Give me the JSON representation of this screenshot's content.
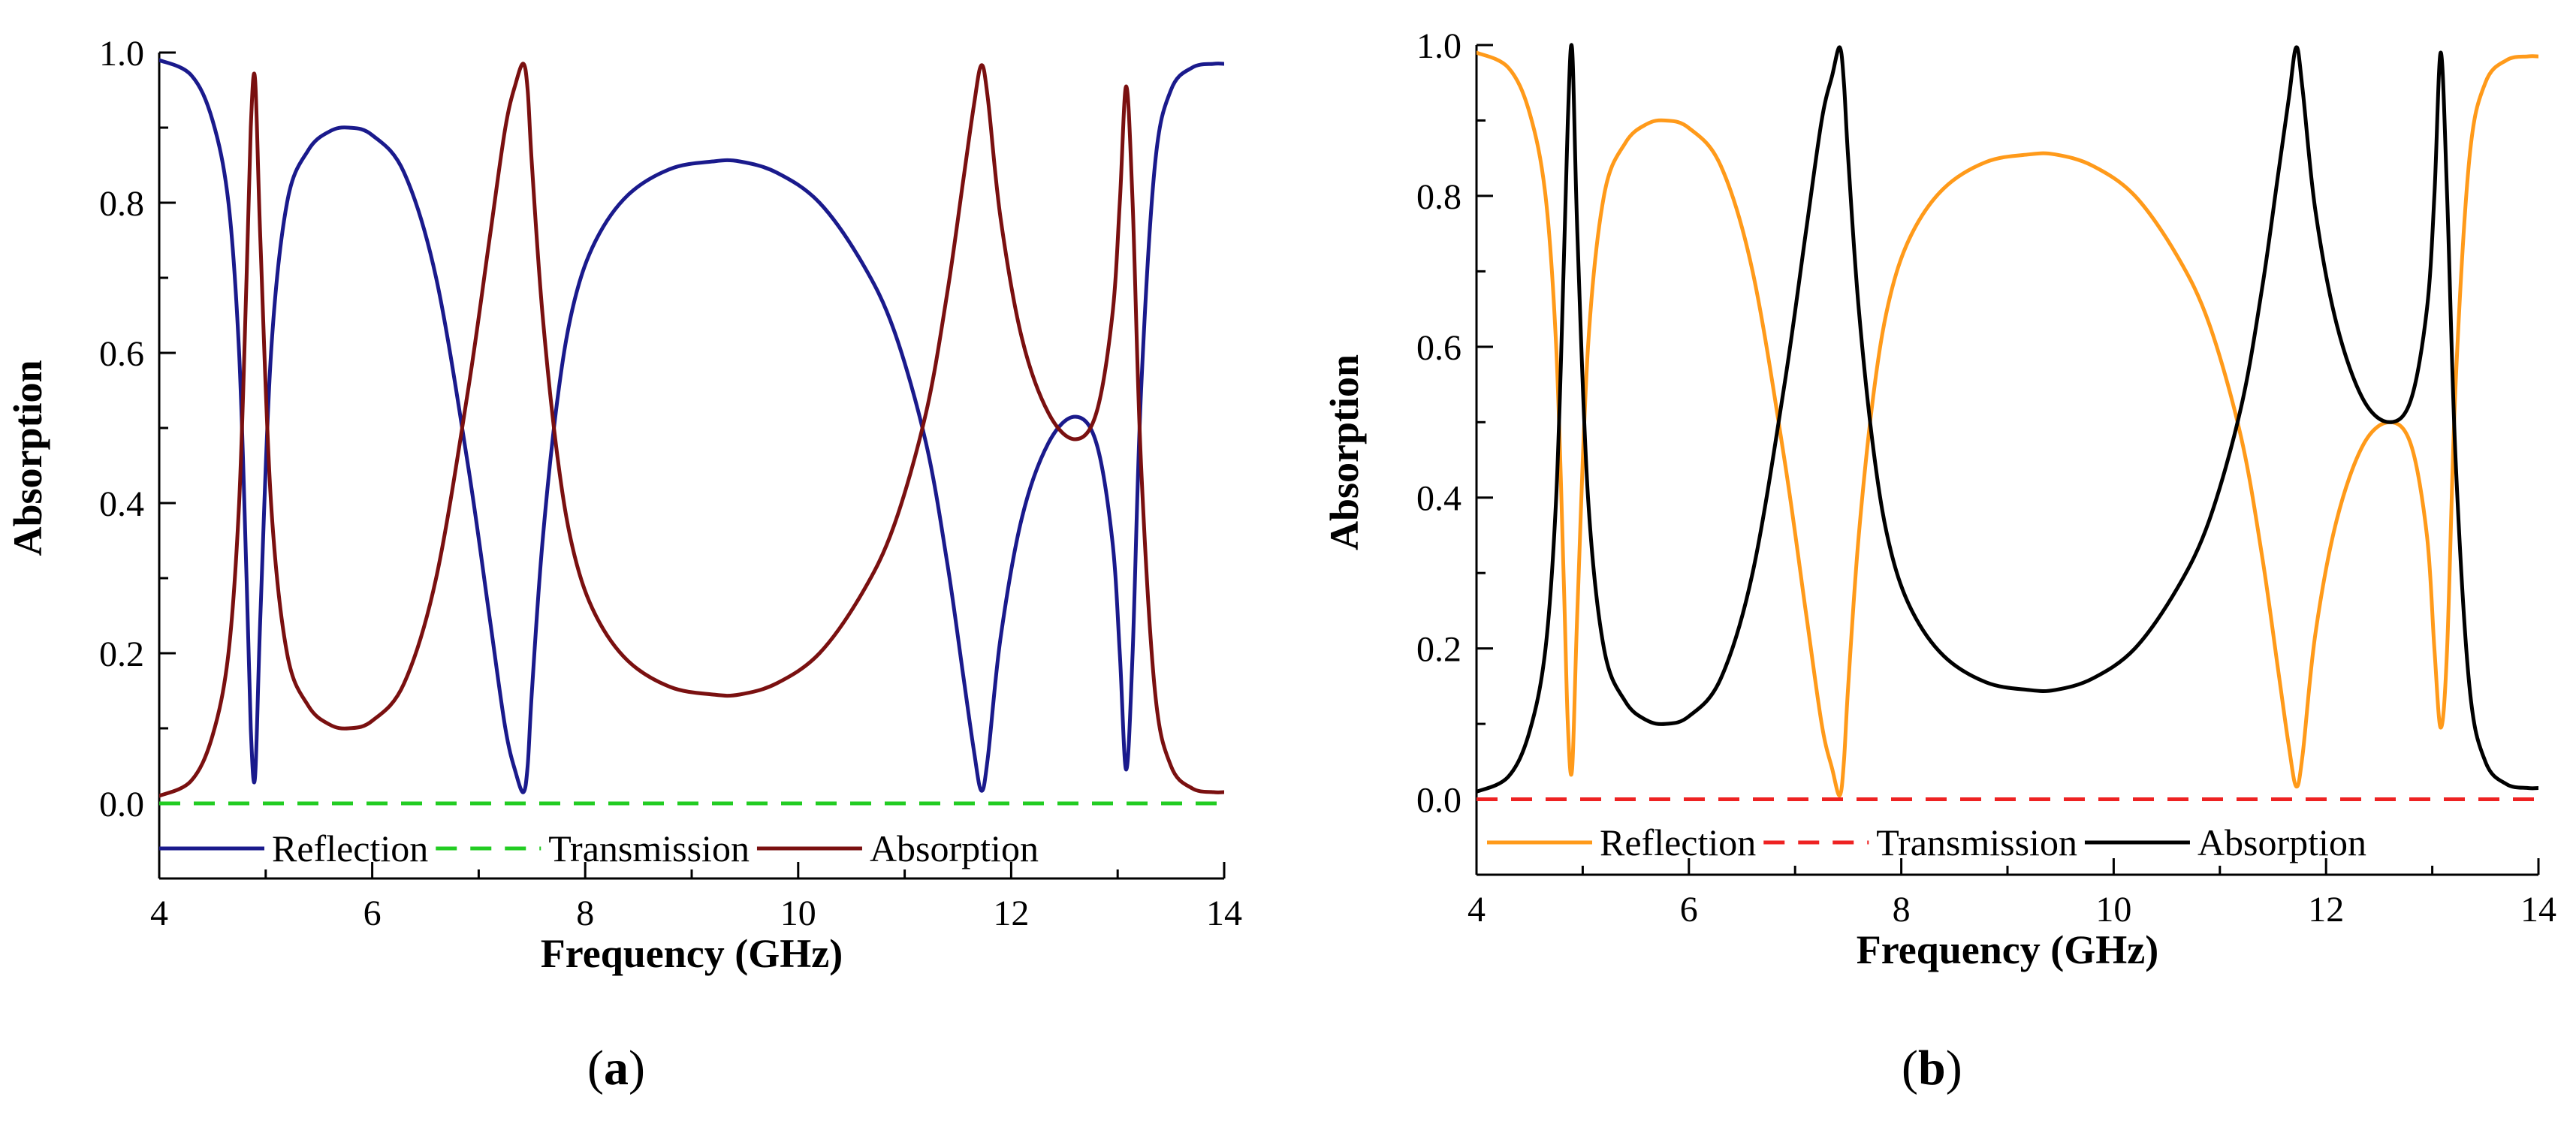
{
  "panels": [
    {
      "caption_open": "(",
      "caption_letter": "a",
      "caption_close": ")"
    },
    {
      "caption_open": "(",
      "caption_letter": "b",
      "caption_close": ")"
    }
  ],
  "chart_data": [
    {
      "type": "line",
      "xlabel": "Frequency (GHz)",
      "ylabel": "Absorption",
      "xlim": [
        4,
        14
      ],
      "ylim": [
        -0.1,
        1.0
      ],
      "xticks": [
        4,
        6,
        8,
        10,
        12,
        14
      ],
      "yticks": [
        0.0,
        0.2,
        0.4,
        0.6,
        0.8,
        1.0
      ],
      "grid": false,
      "legend_position": "bottom",
      "series": [
        {
          "name": "Reflection",
          "color": "#1a1a8c",
          "style": "solid",
          "x": [
            4.0,
            4.3,
            4.5,
            4.65,
            4.75,
            4.82,
            4.86,
            4.9,
            4.95,
            5.05,
            5.2,
            5.4,
            5.6,
            5.78,
            6.0,
            6.3,
            6.6,
            6.9,
            7.1,
            7.25,
            7.35,
            7.42,
            7.46,
            7.5,
            7.6,
            7.75,
            7.9,
            8.1,
            8.4,
            8.8,
            9.2,
            9.45,
            9.8,
            10.2,
            10.6,
            10.9,
            11.2,
            11.4,
            11.55,
            11.65,
            11.72,
            11.78,
            11.9,
            12.1,
            12.35,
            12.6,
            12.8,
            12.95,
            13.02,
            13.08,
            13.14,
            13.22,
            13.35,
            13.5,
            13.7,
            13.9,
            14.0
          ],
          "y": [
            0.99,
            0.97,
            0.91,
            0.8,
            0.6,
            0.3,
            0.1,
            0.035,
            0.25,
            0.6,
            0.8,
            0.87,
            0.895,
            0.9,
            0.89,
            0.84,
            0.7,
            0.45,
            0.25,
            0.1,
            0.04,
            0.015,
            0.05,
            0.15,
            0.35,
            0.55,
            0.67,
            0.75,
            0.81,
            0.845,
            0.855,
            0.855,
            0.84,
            0.8,
            0.72,
            0.63,
            0.48,
            0.32,
            0.17,
            0.07,
            0.017,
            0.06,
            0.22,
            0.38,
            0.48,
            0.515,
            0.48,
            0.35,
            0.2,
            0.045,
            0.2,
            0.55,
            0.85,
            0.95,
            0.98,
            0.985,
            0.985
          ]
        },
        {
          "name": "Transmission",
          "color": "#22cc22",
          "style": "dashed",
          "x": [
            4.0,
            14.0
          ],
          "y": [
            0.0,
            0.0
          ]
        },
        {
          "name": "Absorption",
          "color": "#7a1010",
          "style": "solid",
          "x": [
            4.0,
            4.3,
            4.5,
            4.65,
            4.75,
            4.82,
            4.86,
            4.9,
            4.95,
            5.05,
            5.2,
            5.4,
            5.6,
            5.78,
            6.0,
            6.3,
            6.6,
            6.9,
            7.1,
            7.25,
            7.35,
            7.42,
            7.46,
            7.5,
            7.6,
            7.75,
            7.9,
            8.1,
            8.4,
            8.8,
            9.2,
            9.45,
            9.8,
            10.2,
            10.6,
            10.9,
            11.2,
            11.4,
            11.55,
            11.65,
            11.72,
            11.78,
            11.9,
            12.1,
            12.35,
            12.6,
            12.8,
            12.95,
            13.02,
            13.08,
            13.14,
            13.22,
            13.35,
            13.5,
            13.7,
            13.9,
            14.0
          ],
          "y": [
            0.01,
            0.03,
            0.09,
            0.2,
            0.4,
            0.7,
            0.9,
            0.965,
            0.75,
            0.4,
            0.2,
            0.13,
            0.105,
            0.1,
            0.11,
            0.16,
            0.3,
            0.55,
            0.75,
            0.9,
            0.96,
            0.985,
            0.95,
            0.85,
            0.65,
            0.45,
            0.33,
            0.25,
            0.19,
            0.155,
            0.145,
            0.145,
            0.16,
            0.2,
            0.28,
            0.37,
            0.52,
            0.68,
            0.83,
            0.93,
            0.983,
            0.94,
            0.78,
            0.62,
            0.52,
            0.485,
            0.52,
            0.65,
            0.8,
            0.955,
            0.8,
            0.45,
            0.15,
            0.05,
            0.02,
            0.015,
            0.015
          ]
        }
      ]
    },
    {
      "type": "line",
      "xlabel": "Frequency (GHz)",
      "ylabel": "Absorption",
      "xlim": [
        4,
        14
      ],
      "ylim": [
        -0.1,
        1.0
      ],
      "xticks": [
        4,
        6,
        8,
        10,
        12,
        14
      ],
      "yticks": [
        0.0,
        0.2,
        0.4,
        0.6,
        0.8,
        1.0
      ],
      "grid": false,
      "legend_position": "bottom",
      "series": [
        {
          "name": "Reflection",
          "color": "#ff9a1a",
          "style": "solid",
          "x": [
            4.0,
            4.3,
            4.5,
            4.65,
            4.75,
            4.82,
            4.86,
            4.9,
            4.95,
            5.05,
            5.2,
            5.4,
            5.6,
            5.78,
            6.0,
            6.3,
            6.6,
            6.9,
            7.1,
            7.25,
            7.35,
            7.42,
            7.46,
            7.5,
            7.6,
            7.75,
            7.9,
            8.1,
            8.4,
            8.8,
            9.2,
            9.45,
            9.8,
            10.2,
            10.6,
            10.9,
            11.2,
            11.4,
            11.55,
            11.65,
            11.72,
            11.78,
            11.9,
            12.1,
            12.35,
            12.6,
            12.8,
            12.95,
            13.02,
            13.08,
            13.14,
            13.22,
            13.35,
            13.5,
            13.7,
            13.9,
            14.0
          ],
          "y": [
            0.99,
            0.97,
            0.91,
            0.8,
            0.6,
            0.3,
            0.1,
            0.04,
            0.25,
            0.6,
            0.8,
            0.87,
            0.895,
            0.9,
            0.89,
            0.84,
            0.7,
            0.45,
            0.25,
            0.1,
            0.04,
            0.005,
            0.05,
            0.15,
            0.35,
            0.55,
            0.67,
            0.75,
            0.81,
            0.845,
            0.855,
            0.855,
            0.84,
            0.8,
            0.72,
            0.63,
            0.48,
            0.32,
            0.17,
            0.07,
            0.017,
            0.06,
            0.22,
            0.37,
            0.47,
            0.5,
            0.47,
            0.35,
            0.2,
            0.095,
            0.2,
            0.55,
            0.85,
            0.95,
            0.98,
            0.985,
            0.985
          ]
        },
        {
          "name": "Transmission",
          "color": "#ee2222",
          "style": "dashed",
          "x": [
            4.0,
            14.0
          ],
          "y": [
            0.0,
            0.0
          ]
        },
        {
          "name": "Absorption",
          "color": "#000000",
          "style": "solid",
          "x": [
            4.0,
            4.3,
            4.5,
            4.65,
            4.75,
            4.82,
            4.86,
            4.9,
            4.95,
            5.05,
            5.2,
            5.4,
            5.6,
            5.78,
            6.0,
            6.3,
            6.6,
            6.9,
            7.1,
            7.25,
            7.35,
            7.42,
            7.46,
            7.5,
            7.6,
            7.75,
            7.9,
            8.1,
            8.4,
            8.8,
            9.2,
            9.45,
            9.8,
            10.2,
            10.6,
            10.9,
            11.2,
            11.4,
            11.55,
            11.65,
            11.72,
            11.78,
            11.9,
            12.1,
            12.35,
            12.6,
            12.8,
            12.95,
            13.02,
            13.08,
            13.14,
            13.22,
            13.35,
            13.5,
            13.7,
            13.9,
            14.0
          ],
          "y": [
            0.01,
            0.03,
            0.09,
            0.2,
            0.4,
            0.7,
            0.9,
            0.995,
            0.75,
            0.4,
            0.2,
            0.13,
            0.105,
            0.1,
            0.11,
            0.16,
            0.3,
            0.55,
            0.75,
            0.9,
            0.96,
            0.997,
            0.95,
            0.85,
            0.65,
            0.45,
            0.33,
            0.25,
            0.19,
            0.155,
            0.145,
            0.145,
            0.16,
            0.2,
            0.28,
            0.37,
            0.52,
            0.68,
            0.83,
            0.93,
            0.997,
            0.94,
            0.78,
            0.63,
            0.53,
            0.5,
            0.53,
            0.65,
            0.8,
            0.99,
            0.8,
            0.45,
            0.15,
            0.05,
            0.02,
            0.015,
            0.015
          ]
        }
      ]
    }
  ]
}
